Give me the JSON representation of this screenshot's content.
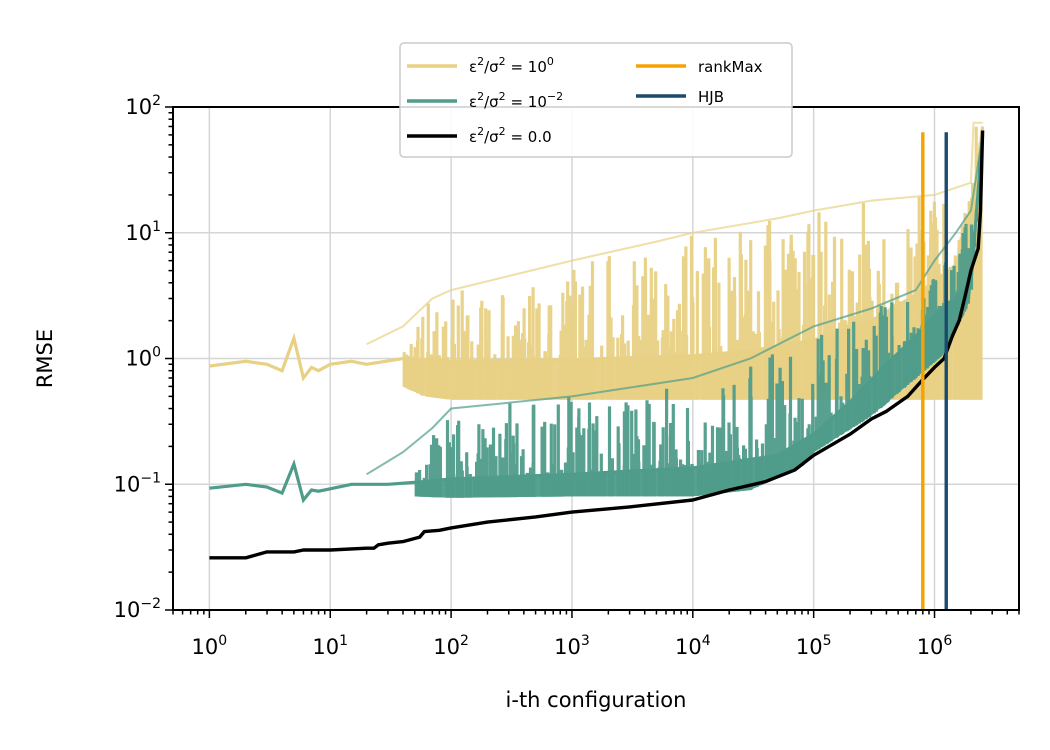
{
  "chart_data": {
    "type": "line",
    "xlabel": "i-th configuration",
    "ylabel": "RMSE",
    "xscale": "log",
    "yscale": "log",
    "xlim": [
      0.5,
      5000000
    ],
    "ylim": [
      0.01,
      100
    ],
    "grid": true,
    "legend_position": "top-center",
    "x_ticks": [
      {
        "value": 1,
        "base": "10",
        "exp": "0"
      },
      {
        "value": 10,
        "base": "10",
        "exp": "1"
      },
      {
        "value": 100,
        "base": "10",
        "exp": "2"
      },
      {
        "value": 1000,
        "base": "10",
        "exp": "3"
      },
      {
        "value": 10000,
        "base": "10",
        "exp": "4"
      },
      {
        "value": 100000,
        "base": "10",
        "exp": "5"
      },
      {
        "value": 1000000,
        "base": "10",
        "exp": "6"
      }
    ],
    "y_ticks": [
      {
        "value": 0.01,
        "base": "10",
        "exp": "−2"
      },
      {
        "value": 0.1,
        "base": "10",
        "exp": "−1"
      },
      {
        "value": 1,
        "base": "10",
        "exp": "0"
      },
      {
        "value": 10,
        "base": "10",
        "exp": "1"
      },
      {
        "value": 100,
        "base": "10",
        "exp": "2"
      }
    ],
    "series": [
      {
        "name": "ε²/σ² = 10⁰",
        "legend_rhs": {
          "base": "10",
          "exp": "0"
        },
        "color": "#e8d184",
        "style": "noisy-band",
        "baseline": [
          [
            1,
            0.87
          ],
          [
            2,
            0.95
          ],
          [
            3,
            0.9
          ],
          [
            4,
            0.8
          ],
          [
            5,
            1.45
          ],
          [
            6,
            0.7
          ],
          [
            7,
            0.85
          ],
          [
            8,
            0.8
          ],
          [
            10,
            0.9
          ],
          [
            15,
            0.95
          ],
          [
            20,
            0.9
          ],
          [
            40,
            1.0
          ],
          [
            100,
            0.95
          ],
          [
            1000,
            0.98
          ],
          [
            10000,
            1.05
          ],
          [
            30000,
            1.15
          ],
          [
            100000,
            1.4
          ],
          [
            300000,
            2.0
          ],
          [
            700000,
            3.2
          ],
          [
            1500000,
            5.5
          ],
          [
            2000000,
            12
          ],
          [
            2500000,
            70
          ]
        ],
        "band_low": [
          [
            40,
            0.6
          ],
          [
            60,
            0.5
          ],
          [
            100,
            0.47
          ],
          [
            1000,
            0.47
          ],
          [
            10000,
            0.47
          ],
          [
            100000,
            0.47
          ],
          [
            1000000,
            0.47
          ],
          [
            2500000,
            0.47
          ]
        ],
        "band_high": [
          [
            20,
            1.3
          ],
          [
            40,
            1.8
          ],
          [
            70,
            3.0
          ],
          [
            100,
            3.5
          ],
          [
            1000,
            6.0
          ],
          [
            5000,
            8.5
          ],
          [
            10000,
            10
          ],
          [
            50000,
            13
          ],
          [
            100000,
            15
          ],
          [
            300000,
            18
          ],
          [
            1000000,
            20
          ],
          [
            2000000,
            25
          ],
          [
            2100000,
            75
          ],
          [
            2500000,
            75
          ]
        ]
      },
      {
        "name": "ε²/σ² = 10⁻²",
        "legend_rhs": {
          "base": "10",
          "exp": "−2"
        },
        "color": "#4f9c8a",
        "style": "noisy-band",
        "baseline": [
          [
            1,
            0.093
          ],
          [
            2,
            0.1
          ],
          [
            3,
            0.095
          ],
          [
            4,
            0.085
          ],
          [
            5,
            0.145
          ],
          [
            6,
            0.075
          ],
          [
            7,
            0.09
          ],
          [
            8,
            0.088
          ],
          [
            10,
            0.092
          ],
          [
            15,
            0.1
          ],
          [
            20,
            0.1
          ],
          [
            30,
            0.1
          ],
          [
            60,
            0.105
          ],
          [
            100,
            0.11
          ],
          [
            1000,
            0.12
          ],
          [
            10000,
            0.135
          ],
          [
            50000,
            0.17
          ],
          [
            100000,
            0.25
          ],
          [
            200000,
            0.45
          ],
          [
            400000,
            0.9
          ],
          [
            700000,
            1.5
          ],
          [
            1000000,
            2.2
          ],
          [
            1500000,
            3.0
          ],
          [
            2000000,
            4.0
          ],
          [
            2500000,
            60
          ]
        ],
        "band_low": [
          [
            50,
            0.08
          ],
          [
            100,
            0.078
          ],
          [
            1000,
            0.08
          ],
          [
            10000,
            0.08
          ],
          [
            30000,
            0.09
          ],
          [
            80000,
            0.14
          ],
          [
            100000,
            0.18
          ],
          [
            300000,
            0.35
          ],
          [
            700000,
            0.7
          ],
          [
            1200000,
            1.1
          ],
          [
            2000000,
            3.0
          ],
          [
            2500000,
            60
          ]
        ],
        "band_high": [
          [
            20,
            0.12
          ],
          [
            40,
            0.18
          ],
          [
            70,
            0.28
          ],
          [
            100,
            0.4
          ],
          [
            1000,
            0.5
          ],
          [
            10000,
            0.7
          ],
          [
            30000,
            1.0
          ],
          [
            100000,
            1.8
          ],
          [
            300000,
            2.5
          ],
          [
            700000,
            3.5
          ],
          [
            1000000,
            6
          ],
          [
            1500000,
            10
          ],
          [
            2000000,
            15
          ],
          [
            2500000,
            60
          ]
        ]
      },
      {
        "name": "ε²/σ² = 0.0",
        "legend_rhs": {
          "base": "0.0",
          "exp": ""
        },
        "color": "#000000",
        "style": "line",
        "points": [
          [
            1,
            0.026
          ],
          [
            2,
            0.026
          ],
          [
            3,
            0.029
          ],
          [
            5,
            0.029
          ],
          [
            6,
            0.03
          ],
          [
            10,
            0.03
          ],
          [
            20,
            0.031
          ],
          [
            23,
            0.031
          ],
          [
            25,
            0.033
          ],
          [
            30,
            0.034
          ],
          [
            40,
            0.035
          ],
          [
            55,
            0.038
          ],
          [
            60,
            0.042
          ],
          [
            80,
            0.043
          ],
          [
            100,
            0.045
          ],
          [
            200,
            0.05
          ],
          [
            500,
            0.055
          ],
          [
            1000,
            0.06
          ],
          [
            3000,
            0.066
          ],
          [
            10000,
            0.075
          ],
          [
            20000,
            0.09
          ],
          [
            40000,
            0.105
          ],
          [
            70000,
            0.13
          ],
          [
            100000,
            0.17
          ],
          [
            200000,
            0.25
          ],
          [
            300000,
            0.33
          ],
          [
            400000,
            0.38
          ],
          [
            600000,
            0.5
          ],
          [
            800000,
            0.68
          ],
          [
            1000000,
            0.85
          ],
          [
            1200000,
            1.0
          ],
          [
            1400000,
            1.5
          ],
          [
            1600000,
            2.0
          ],
          [
            1800000,
            3.2
          ],
          [
            2000000,
            5.0
          ],
          [
            2300000,
            7.5
          ],
          [
            2400000,
            15
          ],
          [
            2500000,
            65
          ]
        ]
      },
      {
        "name": "rankMax",
        "color": "#f5a300",
        "style": "vline",
        "x": 800000,
        "y_top": 63
      },
      {
        "name": "HJB",
        "color": "#1a4a6e",
        "style": "vline",
        "x": 1250000,
        "y_top": 63
      }
    ]
  }
}
